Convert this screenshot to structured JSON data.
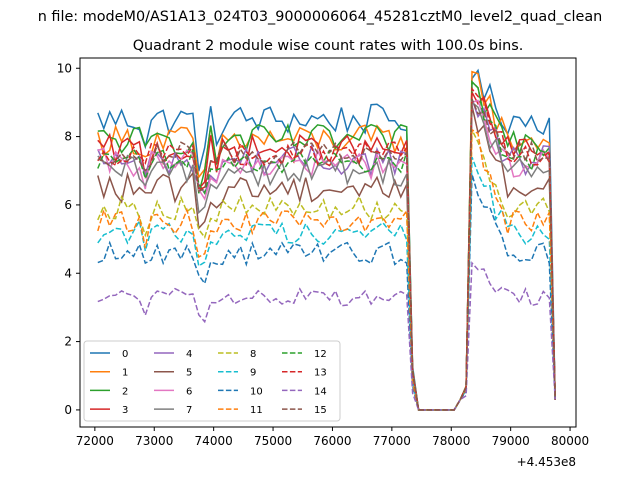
{
  "chart_data": {
    "type": "line",
    "suptitle": "n file: modeM0/AS1A13_024T03_9000006064_45281cztM0_level2_quad_clean",
    "title": "Quadrant 2 module wise count rates with 100.0s bins.",
    "xlabel": "",
    "ylabel": "",
    "x_offset_label": "+4.453e8",
    "xlim": [
      71750,
      80100
    ],
    "ylim": [
      -0.5,
      10.3
    ],
    "xticks": [
      72000,
      73000,
      74000,
      75000,
      76000,
      77000,
      78000,
      79000,
      80000
    ],
    "yticks": [
      0,
      2,
      4,
      6,
      8,
      10
    ],
    "grid": false,
    "legend": {
      "placement": "lower-left",
      "columns": 4
    },
    "series": [
      {
        "name": "0",
        "color": "#1f77b4",
        "dash": "solid",
        "base": 8.5,
        "noise": 0.45,
        "peak": 9.7,
        "end": 0.3
      },
      {
        "name": "1",
        "color": "#ff7f0e",
        "dash": "solid",
        "base": 7.9,
        "noise": 0.45,
        "peak": 9.9,
        "end": 0.3
      },
      {
        "name": "2",
        "color": "#2ca02c",
        "dash": "solid",
        "base": 7.9,
        "noise": 0.45,
        "peak": 9.6,
        "end": 0.3
      },
      {
        "name": "3",
        "color": "#d62728",
        "dash": "solid",
        "base": 7.6,
        "noise": 0.45,
        "peak": 9.3,
        "end": 0.3
      },
      {
        "name": "4",
        "color": "#9467bd",
        "dash": "solid",
        "base": 7.3,
        "noise": 0.45,
        "peak": 9.1,
        "end": 0.3
      },
      {
        "name": "5",
        "color": "#8c564b",
        "dash": "solid",
        "base": 6.5,
        "noise": 0.45,
        "peak": 8.9,
        "end": 0.3
      },
      {
        "name": "6",
        "color": "#e377c2",
        "dash": "solid",
        "base": 7.2,
        "noise": 0.45,
        "peak": 9.0,
        "end": 0.3
      },
      {
        "name": "7",
        "color": "#7f7f7f",
        "dash": "solid",
        "base": 7.0,
        "noise": 0.45,
        "peak": 9.0,
        "end": 0.3
      },
      {
        "name": "8",
        "color": "#bcbd22",
        "dash": "dashed",
        "base": 5.9,
        "noise": 0.35,
        "peak": 8.2,
        "end": 0.3
      },
      {
        "name": "9",
        "color": "#17becf",
        "dash": "dashed",
        "base": 5.2,
        "noise": 0.35,
        "peak": 7.4,
        "end": 0.3
      },
      {
        "name": "10",
        "color": "#1f77b4",
        "dash": "dashed",
        "base": 4.6,
        "noise": 0.35,
        "peak": 6.9,
        "end": 0.3
      },
      {
        "name": "11",
        "color": "#ff7f0e",
        "dash": "dashed",
        "base": 5.5,
        "noise": 0.35,
        "peak": 8.2,
        "end": 0.3
      },
      {
        "name": "12",
        "color": "#2ca02c",
        "dash": "dashed",
        "base": 7.3,
        "noise": 0.35,
        "peak": 9.6,
        "end": 0.3
      },
      {
        "name": "13",
        "color": "#d62728",
        "dash": "dashed",
        "base": 7.5,
        "noise": 0.35,
        "peak": 9.4,
        "end": 0.3
      },
      {
        "name": "14",
        "color": "#9467bd",
        "dash": "dashed",
        "base": 3.3,
        "noise": 0.25,
        "peak": 4.3,
        "end": 0.3
      },
      {
        "name": "15",
        "color": "#8c564b",
        "dash": "dashed",
        "base": 7.5,
        "noise": 0.35,
        "peak": 9.1,
        "end": 0.3
      }
    ]
  }
}
